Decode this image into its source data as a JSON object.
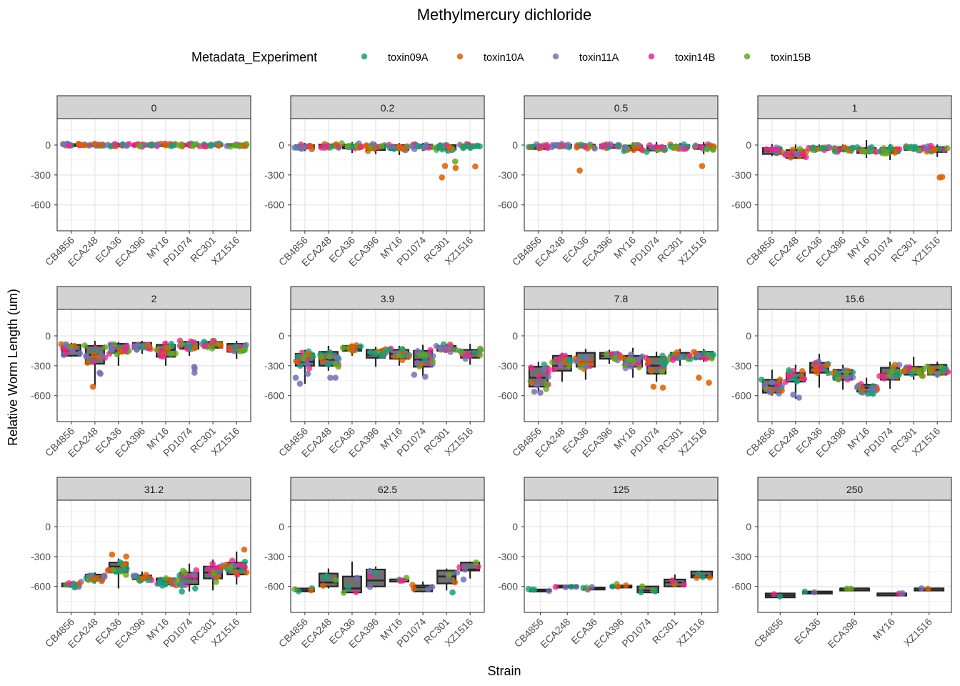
{
  "chart_data": {
    "type": "boxplot",
    "title": "Methylmercury dichloride",
    "xlabel": "Strain",
    "ylabel": "Relative Worm Length (um)",
    "ylim": [
      -860,
      265
    ],
    "yticks": [
      0,
      -300,
      -600
    ],
    "grid": true,
    "legend": {
      "title": "Metadata_Experiment",
      "position": "top",
      "entries": [
        {
          "name": "toxin09A",
          "color": "#1B9E77"
        },
        {
          "name": "toxin10A",
          "color": "#D95F02"
        },
        {
          "name": "toxin11A",
          "color": "#7570B3"
        },
        {
          "name": "toxin14B",
          "color": "#E7298A"
        },
        {
          "name": "toxin15B",
          "color": "#66A61E"
        }
      ]
    },
    "box_fill": "#707070",
    "box_line": "#262626",
    "strip_fill": "#d3d3d3",
    "facets": [
      {
        "label": "0",
        "strains": [
          "CB4856",
          "ECA248",
          "ECA36",
          "ECA396",
          "MY16",
          "PD1074",
          "RC301",
          "XZ1516"
        ],
        "boxes": [
          [
            -20,
            -8,
            0,
            10,
            25
          ],
          [
            -20,
            -8,
            0,
            8,
            20
          ],
          [
            -25,
            -10,
            -2,
            8,
            25
          ],
          [
            -25,
            -10,
            0,
            10,
            30
          ],
          [
            -20,
            -8,
            2,
            10,
            25
          ],
          [
            -25,
            -10,
            0,
            10,
            25
          ],
          [
            -25,
            -10,
            0,
            10,
            25
          ],
          [
            -25,
            -10,
            0,
            10,
            25
          ]
        ],
        "spread": [
          30,
          30,
          30,
          35,
          30,
          35,
          35,
          35
        ],
        "outliers": []
      },
      {
        "label": "0.2",
        "strains": [
          "CB4856",
          "ECA248",
          "ECA36",
          "ECA396",
          "MY16",
          "PD1074",
          "RC301",
          "XZ1516"
        ],
        "boxes": [
          [
            -60,
            -35,
            -15,
            0,
            20
          ],
          [
            -50,
            -25,
            -10,
            5,
            20
          ],
          [
            -80,
            -35,
            -15,
            5,
            30
          ],
          [
            -90,
            -50,
            -25,
            0,
            25
          ],
          [
            -100,
            -50,
            -25,
            0,
            20
          ],
          [
            -60,
            -30,
            -10,
            5,
            20
          ],
          [
            -80,
            -45,
            -20,
            0,
            20
          ],
          [
            -50,
            -25,
            -10,
            5,
            20
          ]
        ],
        "spread": [
          45,
          45,
          50,
          55,
          55,
          50,
          60,
          45
        ],
        "outliers": [
          {
            "strain": "RC301",
            "exp": "toxin10A",
            "values": [
              -210,
              -325,
              -230
            ]
          },
          {
            "strain": "XZ1516",
            "exp": "toxin10A",
            "values": [
              -215
            ]
          },
          {
            "strain": "RC301",
            "exp": "toxin15B",
            "values": [
              -165
            ]
          }
        ]
      },
      {
        "label": "0.5",
        "strains": [
          "CB4856",
          "ECA248",
          "ECA36",
          "ECA396",
          "MY16",
          "PD1074",
          "RC301",
          "XZ1516"
        ],
        "boxes": [
          [
            -60,
            -40,
            -20,
            0,
            20
          ],
          [
            -40,
            -25,
            -10,
            5,
            20
          ],
          [
            -40,
            -25,
            -10,
            5,
            20
          ],
          [
            -40,
            -30,
            -10,
            5,
            25
          ],
          [
            -70,
            -50,
            -30,
            -5,
            25
          ],
          [
            -80,
            -55,
            -30,
            -10,
            30
          ],
          [
            -40,
            -30,
            -10,
            0,
            20
          ],
          [
            -90,
            -40,
            -20,
            0,
            30
          ]
        ],
        "spread": [
          50,
          45,
          55,
          45,
          50,
          60,
          45,
          55
        ],
        "outliers": [
          {
            "strain": "ECA36",
            "exp": "toxin10A",
            "values": [
              -255
            ]
          },
          {
            "strain": "XZ1516",
            "exp": "toxin10A",
            "values": [
              -210
            ]
          }
        ]
      },
      {
        "label": "1",
        "strains": [
          "CB4856",
          "ECA248",
          "ECA36",
          "ECA396",
          "MY16",
          "PD1074",
          "RC301",
          "XZ1516"
        ],
        "boxes": [
          [
            -110,
            -90,
            -60,
            -30,
            10
          ],
          [
            -130,
            -130,
            -100,
            -50,
            5
          ],
          [
            -50,
            -50,
            -30,
            -15,
            5
          ],
          [
            -60,
            -60,
            -40,
            -20,
            5
          ],
          [
            -130,
            -80,
            -55,
            -30,
            50
          ],
          [
            -150,
            -80,
            -60,
            -30,
            10
          ],
          [
            -50,
            -50,
            -30,
            -15,
            5
          ],
          [
            -120,
            -70,
            -45,
            -20,
            5
          ]
        ],
        "spread": [
          60,
          60,
          50,
          55,
          60,
          60,
          50,
          60
        ],
        "outliers": [
          {
            "strain": "XZ1516",
            "exp": "toxin10A",
            "values": [
              -320,
              -325
            ]
          }
        ]
      },
      {
        "label": "2",
        "strains": [
          "CB4856",
          "ECA248",
          "ECA36",
          "ECA396",
          "MY16",
          "PD1074",
          "RC301",
          "XZ1516"
        ],
        "boxes": [
          [
            -210,
            -200,
            -150,
            -90,
            -70
          ],
          [
            -500,
            -280,
            -190,
            -100,
            -50
          ],
          [
            -300,
            -170,
            -150,
            -80,
            -60
          ],
          [
            -180,
            -130,
            -110,
            -70,
            -50
          ],
          [
            -300,
            -210,
            -140,
            -90,
            -60
          ],
          [
            -200,
            -130,
            -110,
            -60,
            -50
          ],
          [
            -130,
            -120,
            -100,
            -60,
            -50
          ],
          [
            -230,
            -160,
            -120,
            -80,
            -50
          ]
        ],
        "spread": [
          70,
          90,
          70,
          70,
          80,
          70,
          60,
          70
        ],
        "outliers": [
          {
            "strain": "ECA248",
            "exp": "toxin10A",
            "values": [
              -510
            ]
          },
          {
            "strain": "PD1074",
            "exp": "toxin11A",
            "values": [
              -370,
              -310,
              -330
            ]
          },
          {
            "strain": "ECA248",
            "exp": "toxin11A",
            "values": [
              -370,
              -380
            ]
          }
        ]
      },
      {
        "label": "3.9",
        "strains": [
          "CB4856",
          "ECA248",
          "ECA36",
          "ECA396",
          "MY16",
          "PD1074",
          "RC301",
          "XZ1516"
        ],
        "boxes": [
          [
            -480,
            -300,
            -260,
            -180,
            -140
          ],
          [
            -350,
            -300,
            -240,
            -160,
            -100
          ],
          [
            -200,
            -150,
            -130,
            -100,
            -80
          ],
          [
            -310,
            -220,
            -190,
            -140,
            -110
          ],
          [
            -300,
            -230,
            -180,
            -140,
            -100
          ],
          [
            -400,
            -310,
            -240,
            -150,
            -90
          ],
          [
            -170,
            -150,
            -120,
            -100,
            -80
          ],
          [
            -290,
            -220,
            -180,
            -140,
            -80
          ]
        ],
        "spread": [
          110,
          100,
          90,
          110,
          100,
          110,
          70,
          90
        ],
        "outliers": [
          {
            "strain": "CB4856",
            "exp": "toxin11A",
            "values": [
              -420,
              -480,
              -380
            ]
          },
          {
            "strain": "ECA248",
            "exp": "toxin11A",
            "values": [
              -420,
              -420
            ]
          },
          {
            "strain": "PD1074",
            "exp": "toxin11A",
            "values": [
              -390,
              -410
            ]
          }
        ]
      },
      {
        "label": "7.8",
        "strains": [
          "CB4856",
          "ECA248",
          "ECA36",
          "ECA396",
          "MY16",
          "PD1074",
          "RC301",
          "XZ1516"
        ],
        "boxes": [
          [
            -570,
            -510,
            -420,
            -310,
            -260
          ],
          [
            -460,
            -350,
            -300,
            -200,
            -170
          ],
          [
            -440,
            -310,
            -260,
            -170,
            -130
          ],
          [
            -280,
            -230,
            -200,
            -170,
            -140
          ],
          [
            -420,
            -310,
            -260,
            -200,
            -120
          ],
          [
            -460,
            -380,
            -300,
            -210,
            -160
          ],
          [
            -300,
            -230,
            -200,
            -170,
            -130
          ],
          [
            -260,
            -230,
            -190,
            -160,
            -130
          ]
        ],
        "spread": [
          120,
          110,
          110,
          90,
          110,
          120,
          90,
          90
        ],
        "outliers": [
          {
            "strain": "CB4856",
            "exp": "toxin11A",
            "values": [
              -560,
              -570
            ]
          },
          {
            "strain": "PD1074",
            "exp": "toxin10A",
            "values": [
              -520,
              -510
            ]
          },
          {
            "strain": "XZ1516",
            "exp": "toxin10A",
            "values": [
              -420,
              -470
            ]
          }
        ]
      },
      {
        "label": "15.6",
        "strains": [
          "CB4856",
          "ECA248",
          "ECA36",
          "ECA396",
          "MY16",
          "PD1074",
          "RC301",
          "XZ1516"
        ],
        "boxes": [
          [
            -600,
            -570,
            -500,
            -440,
            -340
          ],
          [
            -630,
            -460,
            -420,
            -370,
            -290
          ],
          [
            -520,
            -370,
            -320,
            -270,
            -180
          ],
          [
            -540,
            -440,
            -380,
            -340,
            -290
          ],
          [
            -580,
            -560,
            -520,
            -490,
            -420
          ],
          [
            -530,
            -440,
            -380,
            -320,
            -260
          ],
          [
            -440,
            -390,
            -350,
            -310,
            -210
          ],
          [
            -420,
            -390,
            -340,
            -290,
            -260
          ]
        ],
        "spread": [
          140,
          120,
          120,
          110,
          100,
          130,
          110,
          100
        ],
        "outliers": [
          {
            "strain": "ECA248",
            "exp": "toxin11A",
            "values": [
              -620,
              -590
            ]
          },
          {
            "strain": "MY16",
            "exp": "toxin09A",
            "values": [
              -580,
              -580
            ]
          }
        ]
      },
      {
        "label": "31.2",
        "strains": [
          "CB4856",
          "ECA248",
          "ECA36",
          "ECA396",
          "MY16",
          "PD1074",
          "RC301",
          "XZ1516"
        ],
        "boxes": [
          [
            -610,
            -600,
            -590,
            -570,
            -550
          ],
          [
            -570,
            -540,
            -510,
            -480,
            -460
          ],
          [
            -620,
            -460,
            -400,
            -360,
            -320
          ],
          [
            -560,
            -530,
            -510,
            -490,
            -450
          ],
          [
            -600,
            -580,
            -550,
            -520,
            -510
          ],
          [
            -650,
            -580,
            -520,
            -460,
            -370
          ],
          [
            -640,
            -520,
            -460,
            -400,
            -330
          ],
          [
            -580,
            -480,
            -420,
            -360,
            -250
          ]
        ],
        "spread": [
          90,
          100,
          110,
          90,
          60,
          140,
          140,
          140
        ],
        "outliers": [
          {
            "strain": "ECA36",
            "exp": "toxin10A",
            "values": [
              -280,
              -300
            ]
          },
          {
            "strain": "XZ1516",
            "exp": "toxin10A",
            "values": [
              -230
            ]
          },
          {
            "strain": "PD1074",
            "exp": "toxin09A",
            "values": [
              -650,
              -620
            ]
          }
        ]
      },
      {
        "label": "62.5",
        "strains": [
          "CB4856",
          "ECA248",
          "ECA36",
          "ECA396",
          "MY16",
          "PD1074",
          "RC301",
          "XZ1516"
        ],
        "boxes": [
          [
            -650,
            -650,
            -640,
            -620,
            -620
          ],
          [
            -620,
            -600,
            -560,
            -470,
            -420
          ],
          [
            -660,
            -660,
            -620,
            -500,
            -350
          ],
          [
            -610,
            -600,
            -540,
            -430,
            -400
          ],
          [
            -530,
            -530,
            -530,
            -530,
            -530
          ],
          [
            -660,
            -650,
            -610,
            -590,
            -550
          ],
          [
            -640,
            -570,
            -500,
            -440,
            -420
          ],
          [
            -520,
            -440,
            -430,
            -360,
            -350
          ]
        ],
        "spread": [
          60,
          80,
          90,
          80,
          60,
          110,
          80,
          80
        ],
        "outliers": [
          {
            "strain": "XZ1516",
            "exp": "toxin11A",
            "values": [
              -530
            ]
          },
          {
            "strain": "RC301",
            "exp": "toxin09A",
            "values": [
              -660
            ]
          }
        ]
      },
      {
        "label": "125",
        "strains": [
          "CB4856",
          "ECA248",
          "ECA36",
          "ECA396",
          "PD1074",
          "RC301",
          "XZ1516"
        ],
        "boxes": [
          [
            -650,
            -650,
            -640,
            -630,
            -630
          ],
          [
            -610,
            -610,
            -600,
            -590,
            -590
          ],
          [
            -620,
            -620,
            -615,
            -610,
            -610
          ],
          [
            -600,
            -600,
            -595,
            -590,
            -590
          ],
          [
            -660,
            -660,
            -640,
            -600,
            -600
          ],
          [
            -600,
            -600,
            -560,
            -530,
            -480
          ],
          [
            -510,
            -510,
            -490,
            -450,
            -440
          ]
        ],
        "spread": [
          50,
          60,
          60,
          50,
          60,
          60,
          50
        ],
        "outliers": []
      },
      {
        "label": "250",
        "strains": [
          "CB4856",
          "ECA36",
          "ECA396",
          "MY16",
          "XZ1516"
        ],
        "boxes": [
          [
            -710,
            -710,
            -690,
            -670,
            -660
          ],
          [
            -660,
            -660,
            -655,
            -650,
            -650
          ],
          [
            -620,
            -620,
            -620,
            -620,
            -620
          ],
          [
            -670,
            -670,
            -670,
            -670,
            -670
          ],
          [
            -620,
            -620,
            -620,
            -620,
            -620
          ]
        ],
        "spread": [
          30,
          25,
          10,
          10,
          10
        ],
        "outliers": []
      }
    ]
  }
}
